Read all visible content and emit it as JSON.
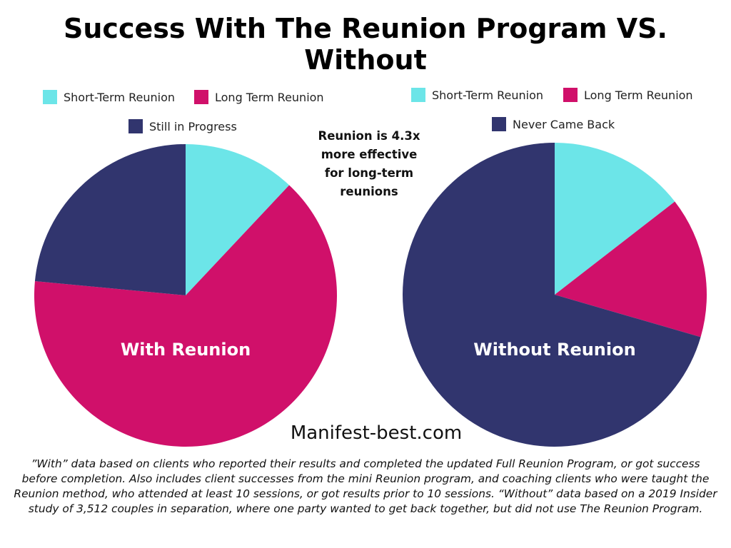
{
  "title": "Success With The Reunion Program VS. Without",
  "colors": {
    "short_term": "#6ce5e8",
    "long_term": "#d0106a",
    "navy": "#31356e"
  },
  "legend_left": {
    "short_term": "Short-Term Reunion",
    "long_term": "Long Term Reunion",
    "third": "Still in Progress"
  },
  "legend_right": {
    "short_term": "Short-Term Reunion",
    "long_term": "Long Term Reunion",
    "third": "Never Came Back"
  },
  "callout": "Reunion is 4.3x more effective for long-term reunions",
  "site": "Manifest-best.com",
  "footnote": "”With” data based on clients who reported their results and completed the updated Full Reunion Program, or got success before completion. Also includes client successes from the mini Reunion program, and coaching clients who were taught the Reunion method, who attended at least 10 sessions, or got results prior to 10 sessions. “Without” data based on a 2019 Insider study of 3,512 couples in separation, where one party wanted to get back together, but did not use The Reunion Program.",
  "chart_data": [
    {
      "type": "pie",
      "title": "With Reunion",
      "slices": [
        {
          "label": "Short-Term Reunion",
          "value": 12,
          "color": "#6ce5e8"
        },
        {
          "label": "Long Term Reunion",
          "value": 64.5,
          "color": "#d0106a"
        },
        {
          "label": "Still in Progress",
          "value": 23.5,
          "color": "#31356e"
        }
      ]
    },
    {
      "type": "pie",
      "title": "Without Reunion",
      "slices": [
        {
          "label": "Short-Term Reunion",
          "value": 14.5,
          "color": "#6ce5e8"
        },
        {
          "label": "Long Term Reunion",
          "value": 15,
          "color": "#d0106a"
        },
        {
          "label": "Never Came Back",
          "value": 70.5,
          "color": "#31356e"
        }
      ]
    }
  ]
}
